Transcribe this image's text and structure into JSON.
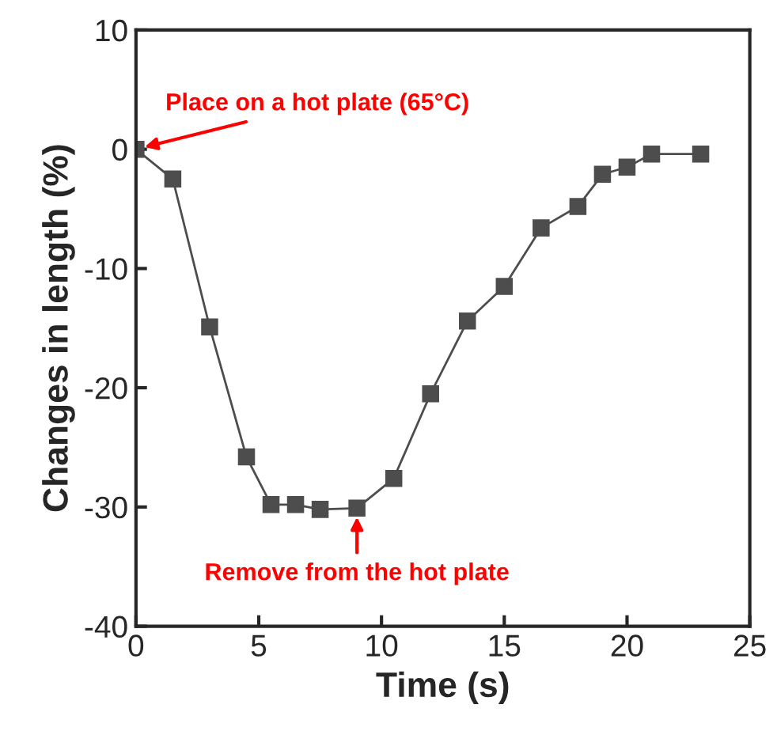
{
  "chart_data": {
    "type": "line",
    "xlabel": "Time (s)",
    "ylabel": "Changes in length (%)",
    "x": [
      0,
      1.5,
      3,
      4.5,
      5.5,
      6.5,
      7.5,
      9,
      10.5,
      12,
      13.5,
      15,
      16.5,
      18,
      19,
      20,
      21,
      23
    ],
    "series": [
      {
        "color": "#4d4d4d",
        "values": [
          0,
          -2.5,
          -14.9,
          -25.8,
          -29.8,
          -29.8,
          -30.2,
          -30.1,
          -27.6,
          -20.5,
          -14.4,
          -11.5,
          -6.6,
          -4.8,
          -2.1,
          -1.5,
          -0.4,
          -0.4
        ]
      }
    ],
    "marker": "square",
    "line_style": "solid",
    "xlim": [
      0,
      25
    ],
    "xticks": [
      0,
      5,
      10,
      15,
      20,
      25
    ],
    "ylim": [
      -40,
      10
    ],
    "yticks": [
      -40,
      -30,
      -20,
      -10,
      0,
      10
    ],
    "annotations": [
      {
        "text": "Place on a hot plate (65°C)",
        "x": 0,
        "y": 0
      },
      {
        "text": "Remove from the hot plate",
        "x": 9,
        "y": -30.1
      }
    ],
    "grid": false,
    "legend": false
  }
}
